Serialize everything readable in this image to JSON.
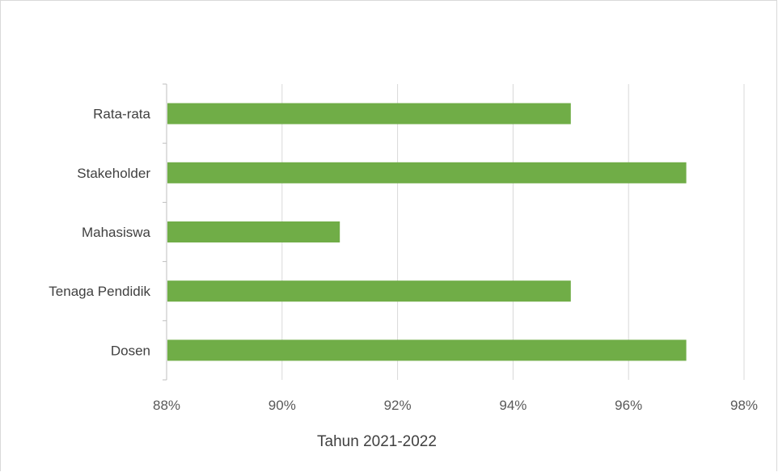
{
  "chart_data": {
    "type": "bar",
    "orientation": "horizontal",
    "categories": [
      "Rata-rata",
      "Stakeholder",
      "Mahasiswa",
      "Tenaga Pendidik",
      "Dosen"
    ],
    "values": [
      95,
      97,
      91,
      95,
      97
    ],
    "value_unit": "%",
    "xlim": [
      88,
      98
    ],
    "xticks": [
      "88%",
      "90%",
      "92%",
      "94%",
      "96%",
      "98%"
    ],
    "xtick_values": [
      88,
      90,
      92,
      94,
      96,
      98
    ],
    "xlabel": "Tahun 2021-2022",
    "ylabel": "",
    "title": "",
    "grid": "vertical",
    "legend": "none",
    "colors": {
      "bar": "#70ad47",
      "grid": "#d9d9d9",
      "axis": "#bfbfbf"
    }
  }
}
